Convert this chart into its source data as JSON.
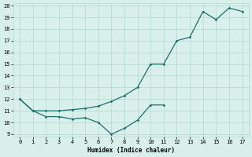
{
  "xlabel": "Humidex (Indice chaleur)",
  "background_color": "#d8efec",
  "grid_color": "#b8d8d4",
  "line_color": "#1e7068",
  "xlim": [
    -0.5,
    17.5
  ],
  "ylim": [
    8.8,
    20.2
  ],
  "xticks": [
    0,
    1,
    2,
    3,
    4,
    5,
    6,
    7,
    8,
    9,
    10,
    11,
    12,
    13,
    14,
    15,
    16,
    17
  ],
  "yticks": [
    9,
    10,
    11,
    12,
    13,
    14,
    15,
    16,
    17,
    18,
    19,
    20
  ],
  "line1_x": [
    0,
    1,
    2,
    3,
    4,
    5,
    6,
    7,
    8,
    9,
    10,
    11
  ],
  "line1_y": [
    12.0,
    11.0,
    10.5,
    10.5,
    10.3,
    10.4,
    10.0,
    9.0,
    9.5,
    10.2,
    11.5,
    11.5
  ],
  "line2_x": [
    0,
    1,
    2,
    3,
    4,
    5,
    6,
    7,
    8,
    9,
    10,
    11,
    12,
    13,
    14,
    15,
    16,
    17
  ],
  "line2_y": [
    12.0,
    11.0,
    11.0,
    11.0,
    11.1,
    11.2,
    11.4,
    11.8,
    12.3,
    13.0,
    15.0,
    15.0,
    17.0,
    17.3,
    19.5,
    18.8,
    19.8,
    19.5
  ]
}
